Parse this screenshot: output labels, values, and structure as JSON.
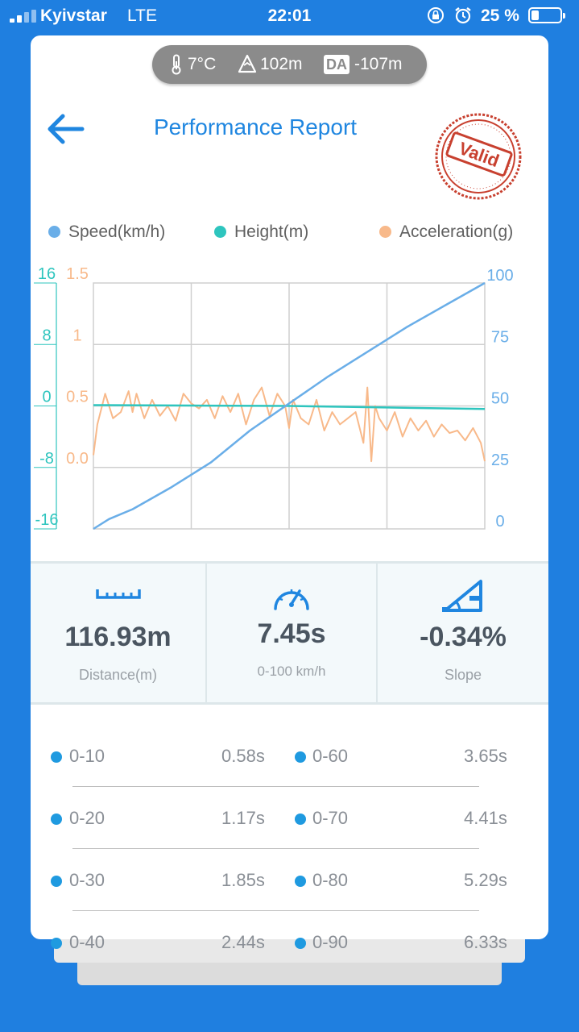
{
  "status_bar": {
    "carrier": "Kyivstar",
    "network": "LTE",
    "time": "22:01",
    "battery_percent": "25 %",
    "battery_level": 0.25
  },
  "weather": {
    "temperature": "7°C",
    "altitude": "102m",
    "da_label": "DA",
    "density_altitude": "-107m"
  },
  "header": {
    "title": "Performance Report",
    "stamp_text": "Valid"
  },
  "legend": {
    "speed": "Speed(km/h)",
    "height": "Height(m)",
    "acceleration": "Acceleration(g)"
  },
  "colors": {
    "speed": "#6aaee8",
    "height": "#2ec5be",
    "acceleration": "#f8b98a",
    "accent": "#1f86e0",
    "stamp": "#c8402f"
  },
  "chart_data": {
    "type": "line",
    "x_divisions": 4,
    "grid": true,
    "axes": {
      "height": {
        "ticks": [
          "16",
          "8",
          "0",
          "-8",
          "-16"
        ],
        "range": [
          -16,
          16
        ]
      },
      "acceleration": {
        "ticks": [
          "1.5",
          "1",
          "0.5",
          "0.0"
        ],
        "range": [
          -0.5,
          1.5
        ]
      },
      "speed": {
        "ticks": [
          "100",
          "75",
          "50",
          "25",
          "0"
        ],
        "range": [
          0,
          100
        ]
      }
    },
    "series": [
      {
        "name": "Speed(km/h)",
        "axis": "speed",
        "x": [
          0,
          0.04,
          0.1,
          0.2,
          0.3,
          0.4,
          0.5,
          0.6,
          0.7,
          0.8,
          0.9,
          1.0
        ],
        "values": [
          0,
          4,
          8,
          17,
          27,
          40,
          51,
          62,
          72,
          82,
          91,
          100
        ]
      },
      {
        "name": "Height(m)",
        "axis": "height",
        "x": [
          0,
          0.25,
          0.5,
          0.75,
          1.0
        ],
        "values": [
          0.1,
          0.05,
          0,
          -0.2,
          -0.4
        ]
      },
      {
        "name": "Acceleration(g)",
        "axis": "acceleration",
        "x": [
          0,
          0.01,
          0.03,
          0.05,
          0.07,
          0.09,
          0.1,
          0.11,
          0.13,
          0.15,
          0.17,
          0.19,
          0.21,
          0.23,
          0.25,
          0.27,
          0.29,
          0.31,
          0.33,
          0.35,
          0.37,
          0.39,
          0.41,
          0.43,
          0.45,
          0.47,
          0.49,
          0.5,
          0.51,
          0.53,
          0.55,
          0.57,
          0.59,
          0.61,
          0.63,
          0.65,
          0.67,
          0.69,
          0.7,
          0.71,
          0.72,
          0.73,
          0.75,
          0.77,
          0.79,
          0.81,
          0.83,
          0.85,
          0.87,
          0.89,
          0.91,
          0.93,
          0.95,
          0.97,
          0.99,
          1.0
        ],
        "values": [
          0.1,
          0.35,
          0.6,
          0.4,
          0.45,
          0.62,
          0.45,
          0.6,
          0.4,
          0.55,
          0.42,
          0.5,
          0.38,
          0.6,
          0.52,
          0.48,
          0.55,
          0.4,
          0.58,
          0.45,
          0.6,
          0.35,
          0.55,
          0.65,
          0.42,
          0.6,
          0.5,
          0.32,
          0.55,
          0.4,
          0.35,
          0.55,
          0.3,
          0.45,
          0.35,
          0.4,
          0.45,
          0.2,
          0.65,
          0.05,
          0.5,
          0.4,
          0.3,
          0.45,
          0.25,
          0.4,
          0.3,
          0.38,
          0.25,
          0.35,
          0.28,
          0.3,
          0.22,
          0.32,
          0.2,
          0.05
        ]
      }
    ]
  },
  "stats": [
    {
      "value": "116.93m",
      "label": "Distance(m)",
      "icon": "ruler-icon"
    },
    {
      "value": "7.45s",
      "label": "0-100 km/h",
      "icon": "speedometer-icon"
    },
    {
      "value": "-0.34%",
      "label": "Slope",
      "icon": "slope-icon"
    }
  ],
  "splits": [
    {
      "left_label": "0-10",
      "left_time": "0.58s",
      "right_label": "0-60",
      "right_time": "3.65s"
    },
    {
      "left_label": "0-20",
      "left_time": "1.17s",
      "right_label": "0-70",
      "right_time": "4.41s"
    },
    {
      "left_label": "0-30",
      "left_time": "1.85s",
      "right_label": "0-80",
      "right_time": "5.29s"
    },
    {
      "left_label": "0-40",
      "left_time": "2.44s",
      "right_label": "0-90",
      "right_time": "6.33s"
    }
  ]
}
